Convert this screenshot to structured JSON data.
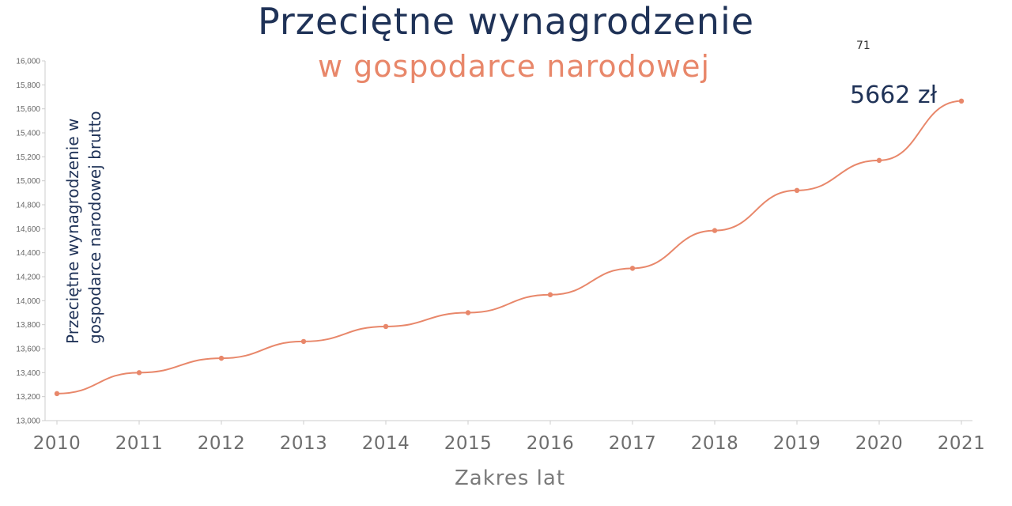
{
  "header": {
    "title": "Przeciętne wynagrodzenie",
    "subtitle": "w gospodarce narodowej",
    "page_number": "71"
  },
  "callout": "5662 zł",
  "colors": {
    "title": "#1f3257",
    "series": "#e8876a",
    "axis_text": "#666666"
  },
  "chart_data": {
    "type": "line",
    "title": "Przeciętne wynagrodzenie",
    "subtitle": "w gospodarce narodowej",
    "xlabel": "Zakres lat",
    "ylabel": "Przeciętne wynagrodzenie w gospodarce narodowej brutto",
    "x": [
      "2010",
      "2011",
      "2012",
      "2013",
      "2014",
      "2015",
      "2016",
      "2017",
      "2018",
      "2019",
      "2020",
      "2021"
    ],
    "series": [
      {
        "values": [
          13225,
          13400,
          13520,
          13660,
          13785,
          13900,
          14050,
          14270,
          14585,
          14920,
          15170,
          15665
        ]
      }
    ],
    "ylim": [
      13000,
      16000
    ],
    "y_ticks": [
      "13,000",
      "13,200",
      "13,400",
      "13,600",
      "13,800",
      "14,000",
      "14,200",
      "14,400",
      "14,600",
      "14,800",
      "15,000",
      "15,200",
      "15,400",
      "15,600",
      "15,800",
      "16,000"
    ],
    "grid": false,
    "legend": "none"
  }
}
